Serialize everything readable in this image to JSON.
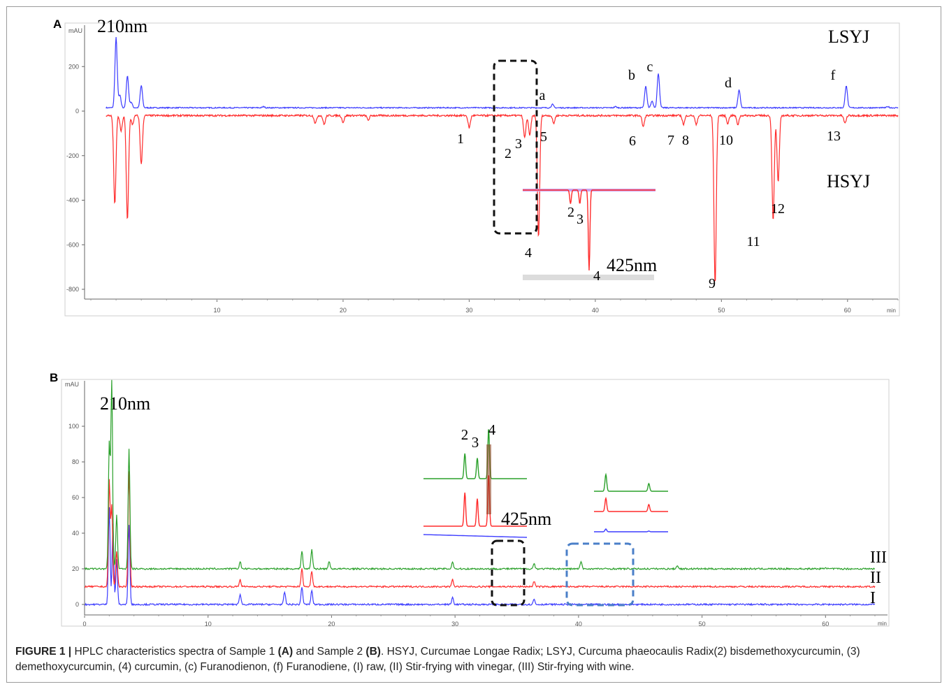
{
  "chart_data": [
    {
      "panel": "A",
      "type": "line",
      "wavelength_label": "210nm",
      "ylabel": "mAU",
      "xlabel": "min",
      "xlim": [
        0,
        64
      ],
      "ylim": [
        -850,
        360
      ],
      "x_ticks": [
        "10",
        "20",
        "30",
        "40",
        "50",
        "60"
      ],
      "y_ticks": [
        "200",
        "0",
        "-200",
        "-400",
        "-600",
        "-800"
      ],
      "series": [
        {
          "name": "LSYJ",
          "color": "#3b3bff",
          "peaks": [
            {
              "x": 2.0,
              "y": 330
            },
            {
              "x": 2.3,
              "y": 70
            },
            {
              "x": 2.9,
              "y": 160
            },
            {
              "x": 3.2,
              "y": 40
            },
            {
              "x": 4.0,
              "y": 115
            },
            {
              "x": 13.7,
              "y": 20
            },
            {
              "x": 36.6,
              "y": 30
            },
            {
              "x": 41.6,
              "y": 20
            },
            {
              "x": 44.0,
              "y": 110
            },
            {
              "x": 44.5,
              "y": 45
            },
            {
              "x": 45.0,
              "y": 170
            },
            {
              "x": 51.4,
              "y": 95
            },
            {
              "x": 59.9,
              "y": 115
            },
            {
              "x": 63.2,
              "y": 20
            }
          ],
          "peak_labels": [
            {
              "label": "a",
              "x": 36.6
            },
            {
              "label": "b",
              "x": 44.0
            },
            {
              "label": "c",
              "x": 45.1
            },
            {
              "label": "d",
              "x": 51.4
            },
            {
              "label": "f",
              "x": 59.9
            }
          ]
        },
        {
          "name": "HSYJ",
          "color": "#ff2a2a",
          "peaks": [
            {
              "x": 1.9,
              "y": -420
            },
            {
              "x": 2.4,
              "y": -90
            },
            {
              "x": 2.9,
              "y": -490
            },
            {
              "x": 3.3,
              "y": -60
            },
            {
              "x": 4.0,
              "y": -240
            },
            {
              "x": 17.8,
              "y": -55
            },
            {
              "x": 18.5,
              "y": -60
            },
            {
              "x": 20.0,
              "y": -50
            },
            {
              "x": 22.0,
              "y": -40
            },
            {
              "x": 30.0,
              "y": -75
            },
            {
              "x": 34.4,
              "y": -120
            },
            {
              "x": 34.8,
              "y": -110
            },
            {
              "x": 35.5,
              "y": -570
            },
            {
              "x": 36.7,
              "y": -55
            },
            {
              "x": 43.8,
              "y": -70
            },
            {
              "x": 47.0,
              "y": -60
            },
            {
              "x": 48.0,
              "y": -60
            },
            {
              "x": 49.5,
              "y": -780
            },
            {
              "x": 50.5,
              "y": -55
            },
            {
              "x": 51.3,
              "y": -60
            },
            {
              "x": 54.1,
              "y": -490
            },
            {
              "x": 54.5,
              "y": -320
            },
            {
              "x": 59.8,
              "y": -55
            }
          ],
          "peak_labels": [
            {
              "label": "1",
              "x": 30.0
            },
            {
              "label": "2",
              "x": 34.4
            },
            {
              "label": "3",
              "x": 34.8
            },
            {
              "label": "4",
              "x": 35.5
            },
            {
              "label": "5",
              "x": 36.7
            },
            {
              "label": "6",
              "x": 43.8
            },
            {
              "label": "7",
              "x": 47.0
            },
            {
              "label": "8",
              "x": 48.0
            },
            {
              "label": "9",
              "x": 49.5
            },
            {
              "label": "10",
              "x": 51.3
            },
            {
              "label": "11",
              "x": 54.1
            },
            {
              "label": "12",
              "x": 54.5
            },
            {
              "label": "13",
              "x": 59.8
            }
          ]
        }
      ],
      "inset": {
        "wavelength_label": "425nm",
        "peak_labels": [
          "2",
          "3",
          "4"
        ]
      }
    },
    {
      "panel": "B",
      "type": "line",
      "wavelength_label": "210nm",
      "ylabel": "mAU",
      "xlabel": "min",
      "xlim": [
        0,
        64
      ],
      "ylim": [
        -5,
        125
      ],
      "x_ticks": [
        "0",
        "10",
        "20",
        "30",
        "40",
        "50",
        "60"
      ],
      "y_ticks": [
        "100",
        "80",
        "60",
        "40",
        "20",
        "0"
      ],
      "series": [
        {
          "name": "III",
          "color": "#2aa02a",
          "baseline": 20,
          "peaks": [
            {
              "x": 2.0,
              "y": 90
            },
            {
              "x": 2.2,
              "y": 125
            },
            {
              "x": 2.6,
              "y": 50
            },
            {
              "x": 3.6,
              "y": 87
            },
            {
              "x": 12.6,
              "y": 24
            },
            {
              "x": 17.6,
              "y": 30
            },
            {
              "x": 18.4,
              "y": 31
            },
            {
              "x": 19.8,
              "y": 24
            },
            {
              "x": 29.8,
              "y": 24
            },
            {
              "x": 36.4,
              "y": 23
            },
            {
              "x": 40.2,
              "y": 24
            },
            {
              "x": 48.0,
              "y": 22
            },
            {
              "x": 60.0,
              "y": 21
            }
          ]
        },
        {
          "name": "II",
          "color": "#ff2a2a",
          "baseline": 10,
          "peaks": [
            {
              "x": 2.0,
              "y": 70
            },
            {
              "x": 2.2,
              "y": 55
            },
            {
              "x": 2.6,
              "y": 30
            },
            {
              "x": 3.6,
              "y": 75
            },
            {
              "x": 12.6,
              "y": 14
            },
            {
              "x": 17.6,
              "y": 20
            },
            {
              "x": 18.4,
              "y": 19
            },
            {
              "x": 29.8,
              "y": 14
            },
            {
              "x": 36.4,
              "y": 13
            }
          ]
        },
        {
          "name": "I",
          "color": "#3b3bff",
          "baseline": 0,
          "peaks": [
            {
              "x": 2.0,
              "y": 55
            },
            {
              "x": 2.3,
              "y": 45
            },
            {
              "x": 2.6,
              "y": 25
            },
            {
              "x": 3.6,
              "y": 45
            },
            {
              "x": 12.6,
              "y": 6
            },
            {
              "x": 16.2,
              "y": 7
            },
            {
              "x": 17.6,
              "y": 10
            },
            {
              "x": 18.4,
              "y": 8
            },
            {
              "x": 29.8,
              "y": 4
            },
            {
              "x": 36.4,
              "y": 3
            }
          ]
        }
      ],
      "inset": {
        "wavelength_label": "425nm",
        "peak_labels": [
          "2",
          "3",
          "4"
        ]
      }
    }
  ],
  "panels": {
    "a": {
      "letter": "A",
      "ylabel": "mAU",
      "xunit": "min",
      "wavelength": "210nm",
      "legend_top": "LSYJ",
      "legend_bottom": "HSYJ",
      "inset_wavelength": "425nm"
    },
    "b": {
      "letter": "B",
      "ylabel": "mAU",
      "xunit": "min",
      "wavelength": "210nm",
      "inset_wavelength": "425nm",
      "trace_labels": [
        "III",
        "II",
        "I"
      ]
    }
  },
  "caption": {
    "figure_label": "FIGURE 1 |",
    "text_1": " HPLC characteristics spectra of Sample 1 ",
    "ref_a": "(A)",
    "text_2": " and Sample 2 ",
    "ref_b": "(B)",
    "text_3": ". HSYJ, Curcumae Longae Radix; LSYJ, Curcuma phaeocaulis Radix(2) bisdemethoxycurcumin, (3) demethoxycurcumin, (4) curcumin, (c) Furanodienon, (f) Furanodiene, (I) raw, (II) Stir-frying with vinegar, (III) Stir-frying with wine."
  }
}
